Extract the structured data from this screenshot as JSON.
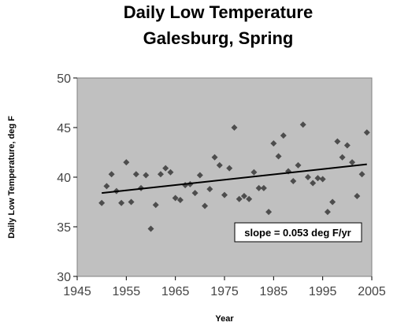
{
  "chart_data": {
    "type": "scatter",
    "title": "Daily Low Temperature",
    "subtitle": "Galesburg, Spring",
    "xlabel": "Year",
    "ylabel": "Daily Low Temperature, deg F",
    "xlim": [
      1945,
      2005
    ],
    "ylim": [
      30,
      50
    ],
    "x_ticks": [
      "1945",
      "1955",
      "1965",
      "1975",
      "1985",
      "1995",
      "2005"
    ],
    "y_ticks": [
      "30",
      "35",
      "40",
      "45",
      "50"
    ],
    "grid": false,
    "plot_background": "#c0c0c0",
    "marker": "diamond",
    "marker_color": "#4d4d4d",
    "trend_color": "#000000",
    "annotation": "slope = 0.053 deg F/yr",
    "trendline": {
      "x": [
        1950,
        2004
      ],
      "y": [
        38.4,
        41.3
      ]
    },
    "x": [
      1950,
      1951,
      1952,
      1953,
      1954,
      1955,
      1956,
      1957,
      1958,
      1959,
      1960,
      1961,
      1962,
      1963,
      1964,
      1965,
      1966,
      1967,
      1968,
      1969,
      1970,
      1971,
      1972,
      1973,
      1974,
      1975,
      1976,
      1977,
      1978,
      1979,
      1980,
      1981,
      1982,
      1983,
      1984,
      1985,
      1986,
      1987,
      1988,
      1989,
      1990,
      1991,
      1992,
      1993,
      1994,
      1995,
      1996,
      1997,
      1998,
      1999,
      2000,
      2001,
      2002,
      2003,
      2004
    ],
    "y": [
      37.4,
      39.1,
      40.3,
      38.6,
      37.4,
      41.5,
      37.5,
      40.3,
      38.9,
      40.2,
      34.8,
      37.2,
      40.3,
      40.9,
      40.5,
      37.9,
      37.7,
      39.2,
      39.3,
      38.4,
      40.2,
      37.1,
      38.8,
      42.0,
      41.2,
      38.2,
      40.9,
      45.0,
      37.8,
      38.1,
      37.8,
      40.5,
      38.9,
      38.9,
      36.5,
      43.4,
      42.1,
      44.2,
      40.6,
      39.6,
      41.2,
      45.3,
      40.0,
      39.4,
      39.9,
      39.8,
      36.5,
      37.5,
      43.6,
      42.0,
      43.2,
      41.5,
      38.1,
      40.3,
      44.5
    ]
  }
}
